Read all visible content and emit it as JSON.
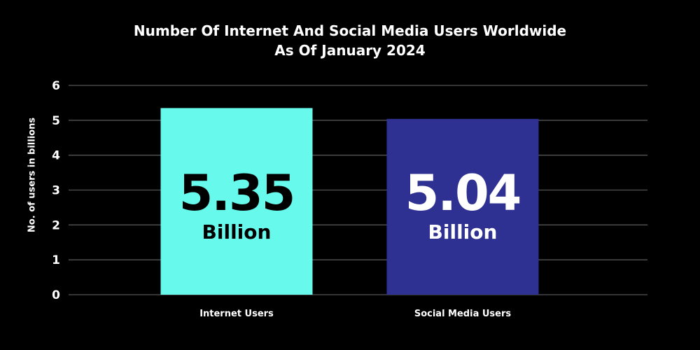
{
  "chart_data": {
    "type": "bar",
    "title_line1": "Number Of Internet And Social Media Users Worldwide",
    "title_line2": "As Of January 2024",
    "xlabel": "",
    "ylabel": "No. of users in billions",
    "ylim": [
      0,
      6
    ],
    "yticks": [
      "0",
      "1",
      "2",
      "3",
      "4",
      "5",
      "6"
    ],
    "grid": true,
    "categories": [
      "Internet Users",
      "Social Media Users"
    ],
    "values": [
      5.35,
      5.04
    ],
    "data_labels": [
      {
        "value": "5.35",
        "unit": "Billion"
      },
      {
        "value": "5.04",
        "unit": "Billion"
      }
    ],
    "colors": [
      "#66F9EC",
      "#2E3192"
    ],
    "label_colors": [
      "#000000",
      "#FFFFFF"
    ]
  }
}
